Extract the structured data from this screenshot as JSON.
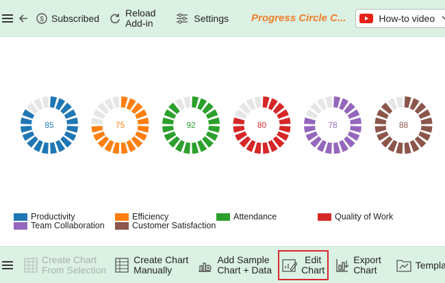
{
  "toolbar_top": {
    "subscribed_label": "Subscribed",
    "reload_label_1": "Reload",
    "reload_label_2": "Add-in",
    "settings_label": "Settings",
    "app_title": "Progress Circle C...",
    "video_label": "How-to video"
  },
  "toolbar_bottom": {
    "create_selection_1": "Create Chart",
    "create_selection_2": "From Selection",
    "create_manual_1": "Create Chart",
    "create_manual_2": "Manually",
    "add_sample_1": "Add Sample",
    "add_sample_2": "Chart + Data",
    "edit_chart_1": "Edit",
    "edit_chart_2": "Chart",
    "export_chart_1": "Export",
    "export_chart_2": "Chart",
    "template_label": "Template"
  },
  "colors": {
    "toolbar_bg": "#dbf1e3",
    "accent": "#f07d2a",
    "highlight_border": "#d9242a",
    "track": "#e6e6e6"
  },
  "chart_data": {
    "type": "progress-circle",
    "segments_per_ring": 20,
    "max": 100,
    "series": [
      {
        "name": "Productivity",
        "value": 85,
        "color": "#1f77b4"
      },
      {
        "name": "Efficiency",
        "value": 75,
        "color": "#ff7f0e"
      },
      {
        "name": "Attendance",
        "value": 92,
        "color": "#2ca02c"
      },
      {
        "name": "Quality of Work",
        "value": 80,
        "color": "#d62728"
      },
      {
        "name": "Team Collaboration",
        "value": 78,
        "color": "#9467bd"
      },
      {
        "name": "Customer Satisfaction",
        "value": 88,
        "color": "#8c564b"
      }
    ],
    "legend": "bottom"
  }
}
